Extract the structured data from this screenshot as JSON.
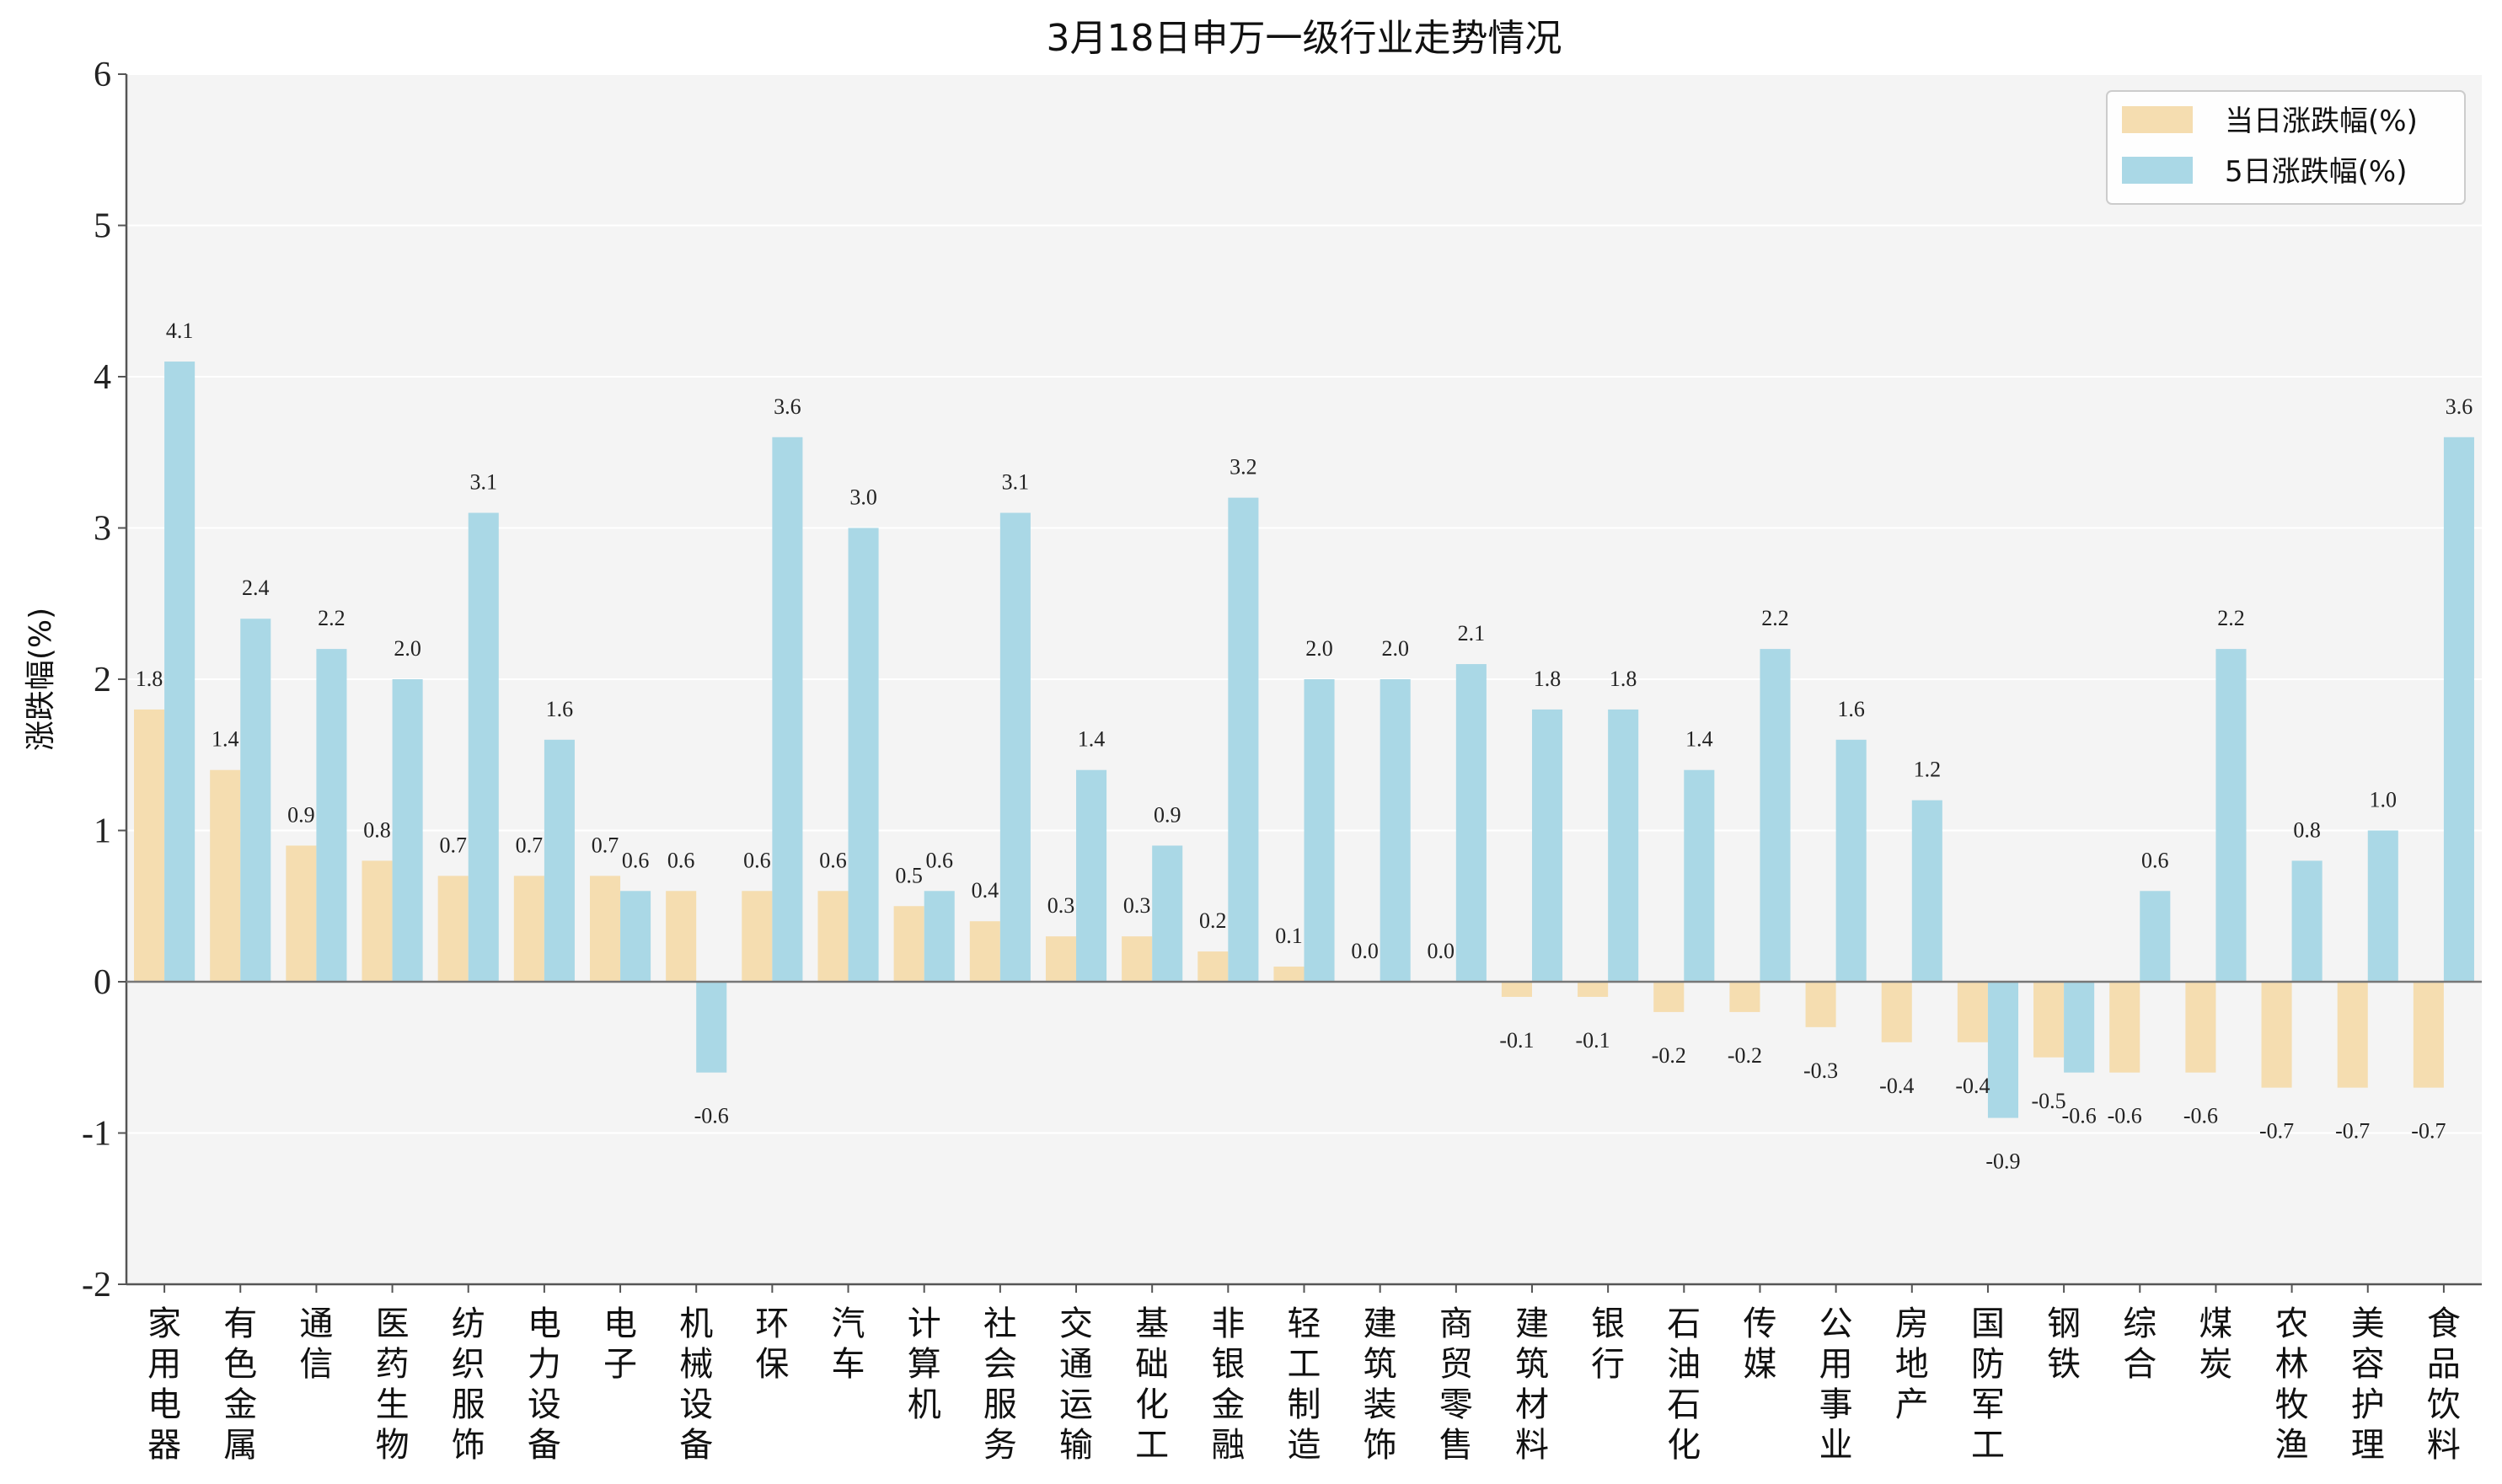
{
  "chart_data": {
    "type": "bar",
    "title": "3月18日申万一级行业走势情况",
    "ylabel": "涨跌幅(%)",
    "xlabel": "",
    "ylim": [
      -2,
      6
    ],
    "yticks": [
      6,
      5,
      4,
      3,
      2,
      1,
      0,
      -1,
      -2
    ],
    "grid": true,
    "legend_position": "top-right",
    "categories": [
      "家用电器",
      "有色金属",
      "通信",
      "医药生物",
      "纺织服饰",
      "电力设备",
      "电子",
      "机械设备",
      "环保",
      "汽车",
      "计算机",
      "社会服务",
      "交通运输",
      "基础化工",
      "非银金融",
      "轻工制造",
      "建筑装饰",
      "商贸零售",
      "建筑材料",
      "银行",
      "石油石化",
      "传媒",
      "公用事业",
      "房地产",
      "国防军工",
      "钢铁",
      "综合",
      "煤炭",
      "农林牧渔",
      "美容护理",
      "食品饮料"
    ],
    "series": [
      {
        "name": "当日涨跌幅(%)",
        "color": "#f5ddb0",
        "values": [
          1.8,
          1.4,
          0.9,
          0.8,
          0.7,
          0.7,
          0.7,
          0.6,
          0.6,
          0.6,
          0.5,
          0.4,
          0.3,
          0.3,
          0.2,
          0.1,
          0.0,
          0.0,
          -0.1,
          -0.1,
          -0.2,
          -0.2,
          -0.3,
          -0.4,
          -0.4,
          -0.5,
          -0.6,
          -0.6,
          -0.7,
          -0.7,
          -0.7
        ]
      },
      {
        "name": "5日涨跌幅(%)",
        "color": "#aad8e6",
        "values": [
          4.1,
          2.4,
          2.2,
          2.0,
          3.1,
          1.6,
          0.6,
          -0.6,
          3.6,
          3.0,
          0.6,
          3.1,
          1.4,
          0.9,
          3.2,
          2.0,
          2.0,
          2.1,
          1.8,
          1.8,
          1.4,
          2.2,
          1.6,
          1.2,
          -0.9,
          -0.6,
          0.6,
          2.2,
          0.8,
          1.0,
          3.6
        ]
      }
    ]
  }
}
